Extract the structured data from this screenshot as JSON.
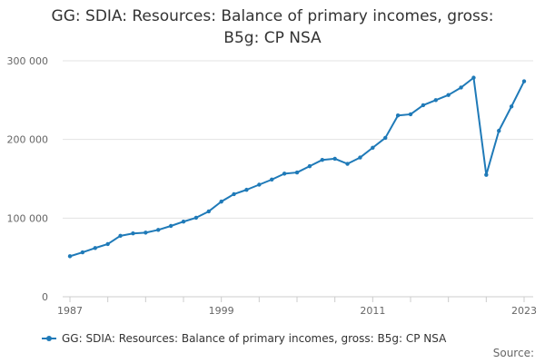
{
  "chart_data": {
    "type": "line",
    "title_lines": [
      "GG: SDIA: Resources: Balance of primary incomes, gross:",
      "B5g: CP NSA"
    ],
    "xlabel": "",
    "ylabel": "",
    "x_ticks": [
      "1987",
      "1999",
      "2011",
      "2023"
    ],
    "y_ticks": [
      "0",
      "100 000",
      "200 000",
      "300 000"
    ],
    "ylim": [
      0,
      300000
    ],
    "xlim": [
      1987,
      2023
    ],
    "grid": true,
    "legend_position": "bottom",
    "series": [
      {
        "name": "GG: SDIA: Resources: Balance of primary incomes, gross: B5g: CP NSA",
        "color": "#1f7ab8",
        "x": [
          1987,
          1988,
          1989,
          1990,
          1991,
          1992,
          1993,
          1994,
          1995,
          1996,
          1997,
          1998,
          1999,
          2000,
          2001,
          2002,
          2003,
          2004,
          2005,
          2006,
          2007,
          2008,
          2009,
          2010,
          2011,
          2012,
          2013,
          2014,
          2015,
          2016,
          2017,
          2018,
          2019,
          2020,
          2021,
          2022,
          2023
        ],
        "y": [
          51500,
          56500,
          62000,
          67000,
          77500,
          80500,
          81500,
          85000,
          90000,
          95500,
          100500,
          108500,
          121000,
          130500,
          136000,
          142500,
          149000,
          156500,
          158000,
          166000,
          174000,
          175500,
          169000,
          177000,
          189500,
          202000,
          230500,
          232000,
          243500,
          250000,
          256500,
          266000,
          278500,
          155000,
          211000,
          242000,
          274000
        ]
      }
    ]
  },
  "source_label": "Source:"
}
